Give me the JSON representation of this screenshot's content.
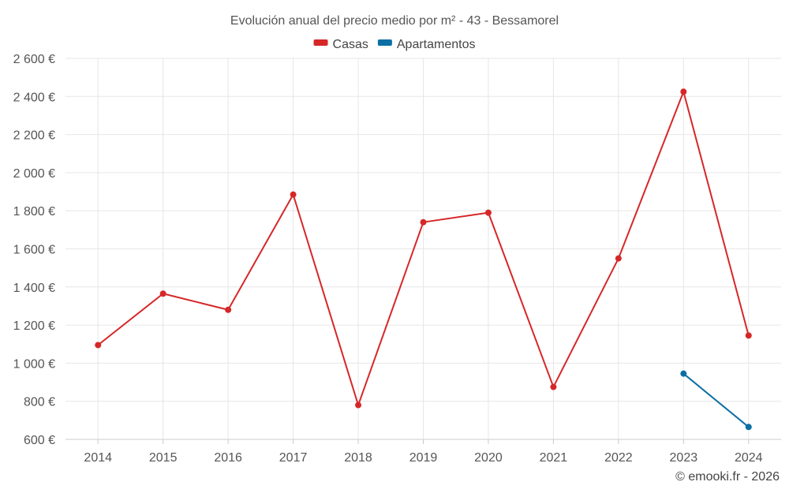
{
  "chart_data": {
    "type": "line",
    "title": "Evolución anual del precio medio por m² - 43 - Bessamorel",
    "categories": [
      "2014",
      "2015",
      "2016",
      "2017",
      "2018",
      "2019",
      "2020",
      "2021",
      "2022",
      "2023",
      "2024"
    ],
    "series": [
      {
        "name": "Casas",
        "color": "#d62728",
        "values": [
          1095,
          1365,
          1280,
          1885,
          780,
          1740,
          1790,
          875,
          1550,
          2425,
          1145
        ]
      },
      {
        "name": "Apartamentos",
        "color": "#0b6fa4",
        "values": [
          null,
          null,
          null,
          null,
          null,
          null,
          null,
          null,
          null,
          945,
          665
        ]
      }
    ],
    "ylim": [
      600,
      2600
    ],
    "yticks": [
      600,
      800,
      1000,
      1200,
      1400,
      1600,
      1800,
      2000,
      2200,
      2400,
      2600
    ],
    "ytick_labels": [
      "600 €",
      "800 €",
      "1 000 €",
      "1 200 €",
      "1 400 €",
      "1 600 €",
      "1 800 €",
      "2 000 €",
      "2 200 €",
      "2 400 €",
      "2 600 €"
    ],
    "xlabel": "",
    "ylabel": "",
    "grid": true,
    "legend_position": "top-center",
    "credit": "© emooki.fr - 2026"
  }
}
